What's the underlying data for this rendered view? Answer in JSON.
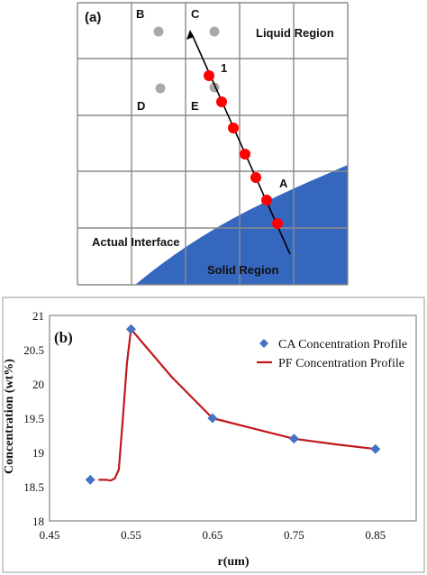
{
  "panel_a": {
    "label": "(a)",
    "cell_labels": {
      "b": "B",
      "c": "C",
      "d": "D",
      "e": "E"
    },
    "region_liquid": "Liquid Region",
    "region_solid": "Solid Region",
    "actual_interface": "Actual Interface",
    "point_1": "1",
    "point_a": "A",
    "colors": {
      "solid": "#3567be",
      "grid": "#8a8a8a",
      "red_point": "#ff0000",
      "gray_point": "#a9a9a9"
    }
  },
  "panel_b": {
    "label": "(b)",
    "x_axis_label": "r(um)",
    "y_axis_label": "Concentration (wt%)",
    "legend": {
      "ca": "CA Concentration Profile",
      "pf": "PF Concentration Profile"
    }
  },
  "chart_data": {
    "type": "line",
    "xlabel": "r(um)",
    "ylabel": "Concentration (wt%)",
    "xlim": [
      0.45,
      0.9
    ],
    "ylim": [
      18,
      21
    ],
    "x_ticks": [
      "0.45",
      "0.55",
      "0.65",
      "0.75",
      "0.85"
    ],
    "y_ticks": [
      "18",
      "18.5",
      "19",
      "19.5",
      "20",
      "20.5",
      "21"
    ],
    "legend_position": "top-right",
    "series": [
      {
        "name": "CA Concentration Profile",
        "marker": "diamond",
        "color": "#4472c4",
        "x": [
          0.5,
          0.55,
          0.65,
          0.75,
          0.85
        ],
        "y": [
          18.6,
          20.8,
          19.5,
          19.2,
          19.05
        ]
      },
      {
        "name": "PF Concentration Profile",
        "marker": "none",
        "color": "#c0181b",
        "x": [
          0.51,
          0.52,
          0.525,
          0.53,
          0.535,
          0.54,
          0.545,
          0.55,
          0.6,
          0.65,
          0.7,
          0.75,
          0.8,
          0.85
        ],
        "y": [
          18.6,
          18.6,
          18.59,
          18.62,
          18.75,
          19.5,
          20.3,
          20.8,
          20.1,
          19.5,
          19.35,
          19.2,
          19.12,
          19.05
        ]
      }
    ]
  }
}
